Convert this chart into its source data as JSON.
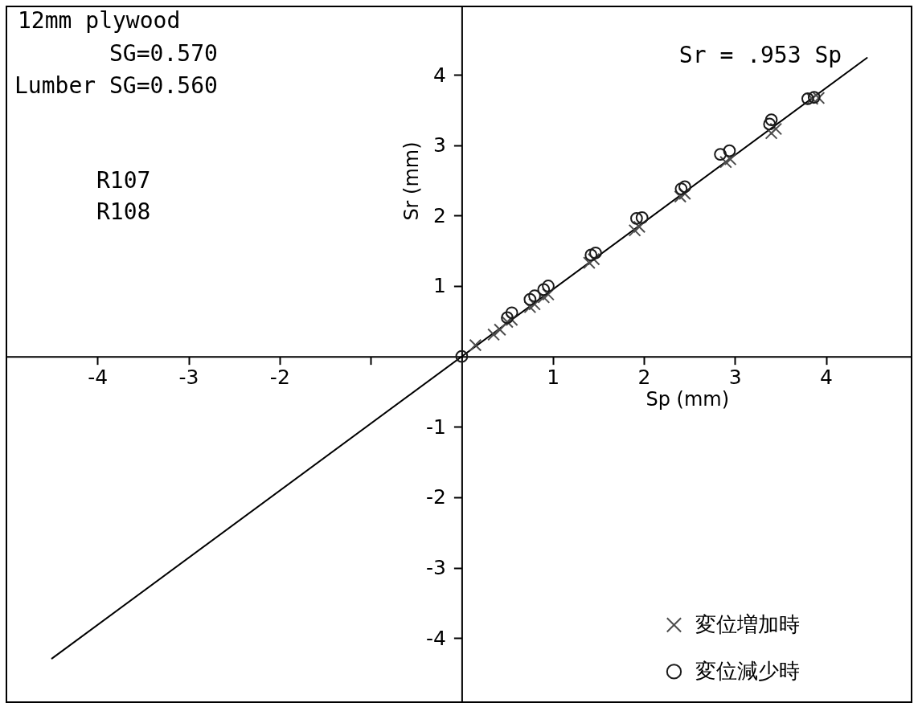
{
  "chart_data": {
    "type": "scatter",
    "xlabel": "Sp (mm)",
    "ylabel": "Sr (mm)",
    "annotations": [
      "12mm plywood",
      "SG=0.570",
      "Lumber SG=0.560",
      "R107",
      "R108",
      "Sr = .953 Sp"
    ],
    "xlim": [
      -5.0,
      4.94
    ],
    "ylim": [
      -4.91,
      4.97
    ],
    "xticks": [
      -4,
      -3,
      -2,
      {
        "value": -1,
        "label": null
      },
      1,
      2,
      3,
      4
    ],
    "yticks": [
      -4,
      -3,
      -2,
      -1,
      1,
      2,
      3,
      4
    ],
    "grid": false,
    "legend": "bottom right",
    "series": [
      {
        "name": "変位増加時",
        "marker": "cross",
        "color": "#4d4d4d",
        "x": [
          0.15,
          0.35,
          0.42,
          0.5,
          0.55,
          0.75,
          0.8,
          0.9,
          0.95,
          1.4,
          1.45,
          1.9,
          1.95,
          2.4,
          2.45,
          2.9,
          2.95,
          3.4,
          3.45,
          3.85,
          3.92
        ],
        "values": [
          0.16,
          0.31,
          0.38,
          0.49,
          0.52,
          0.7,
          0.74,
          0.84,
          0.88,
          1.33,
          1.38,
          1.79,
          1.84,
          2.27,
          2.31,
          2.76,
          2.8,
          3.17,
          3.23,
          3.66,
          3.67
        ]
      },
      {
        "name": "変位減少時",
        "marker": "circle",
        "color": "#1a1a1a",
        "x": [
          0,
          0.5,
          0.55,
          0.75,
          0.8,
          0.9,
          0.95,
          1.42,
          1.47,
          1.92,
          1.98,
          2.41,
          2.45,
          2.84,
          2.94,
          3.38,
          3.4,
          3.8,
          3.87
        ],
        "values": [
          0,
          0.55,
          0.62,
          0.81,
          0.86,
          0.95,
          1.0,
          1.44,
          1.47,
          1.96,
          1.97,
          2.38,
          2.41,
          2.87,
          2.92,
          3.3,
          3.36,
          3.66,
          3.68
        ]
      },
      {
        "type": "line",
        "line_style": "solid",
        "color": "#000000",
        "x": [
          -4.5,
          4.45
        ],
        "values": [
          -4.29,
          4.24
        ]
      }
    ]
  }
}
